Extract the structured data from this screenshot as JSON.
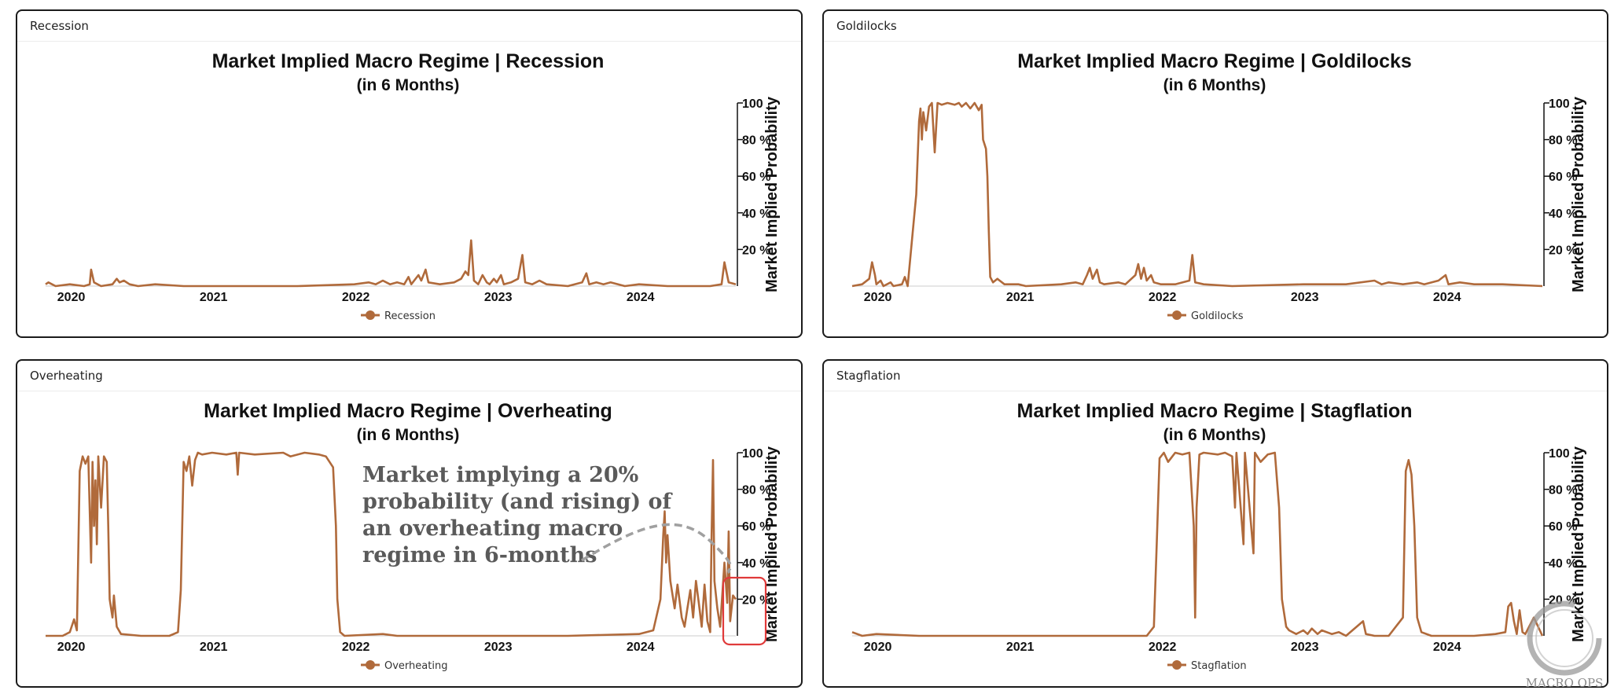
{
  "panels": [
    {
      "id": "recession",
      "header": "Recession"
    },
    {
      "id": "goldilocks",
      "header": "Goldilocks"
    },
    {
      "id": "overheating",
      "header": "Overheating"
    },
    {
      "id": "stagflation",
      "header": "Stagflation"
    }
  ],
  "colors": {
    "line": "#b06a3b",
    "axis": "#111111",
    "annotation_box": "#e03a3a",
    "annotation_arrow": "#a0a0a0",
    "watermark": "#9a9a9a"
  },
  "chart_data": [
    {
      "type": "line",
      "title": "Market Implied Macro Regime | Recession",
      "subtitle": "(in 6 Months)",
      "ylabel": "Market Implied Probability",
      "ylim": [
        0,
        100
      ],
      "yticks": [
        "20 %",
        "40 %",
        "60 %",
        "80 %",
        "100"
      ],
      "xticks": [
        "2020",
        "2021",
        "2022",
        "2023",
        "2024"
      ],
      "xlim": [
        2019.83,
        2024.68
      ],
      "legend": "Recession",
      "points": [
        [
          2019.83,
          1
        ],
        [
          2019.85,
          2
        ],
        [
          2019.9,
          0
        ],
        [
          2020.0,
          1
        ],
        [
          2020.1,
          0
        ],
        [
          2020.14,
          1
        ],
        [
          2020.15,
          9
        ],
        [
          2020.17,
          2
        ],
        [
          2020.22,
          0
        ],
        [
          2020.3,
          1
        ],
        [
          2020.33,
          4
        ],
        [
          2020.35,
          2
        ],
        [
          2020.38,
          3
        ],
        [
          2020.42,
          1
        ],
        [
          2020.48,
          0
        ],
        [
          2020.6,
          1
        ],
        [
          2020.8,
          0
        ],
        [
          2021.2,
          0
        ],
        [
          2021.6,
          0
        ],
        [
          2022.0,
          1
        ],
        [
          2022.1,
          2
        ],
        [
          2022.15,
          1
        ],
        [
          2022.2,
          3
        ],
        [
          2022.25,
          1
        ],
        [
          2022.3,
          2
        ],
        [
          2022.35,
          1
        ],
        [
          2022.38,
          5
        ],
        [
          2022.4,
          1
        ],
        [
          2022.45,
          6
        ],
        [
          2022.47,
          3
        ],
        [
          2022.5,
          9
        ],
        [
          2022.52,
          2
        ],
        [
          2022.6,
          1
        ],
        [
          2022.7,
          2
        ],
        [
          2022.75,
          4
        ],
        [
          2022.78,
          8
        ],
        [
          2022.8,
          6
        ],
        [
          2022.82,
          25
        ],
        [
          2022.84,
          3
        ],
        [
          2022.87,
          1
        ],
        [
          2022.9,
          6
        ],
        [
          2022.93,
          2
        ],
        [
          2022.95,
          1
        ],
        [
          2022.98,
          4
        ],
        [
          2023.0,
          2
        ],
        [
          2023.03,
          6
        ],
        [
          2023.05,
          1
        ],
        [
          2023.1,
          2
        ],
        [
          2023.15,
          4
        ],
        [
          2023.18,
          17
        ],
        [
          2023.2,
          2
        ],
        [
          2023.25,
          1
        ],
        [
          2023.3,
          3
        ],
        [
          2023.35,
          1
        ],
        [
          2023.5,
          0
        ],
        [
          2023.6,
          2
        ],
        [
          2023.63,
          7
        ],
        [
          2023.65,
          1
        ],
        [
          2023.7,
          2
        ],
        [
          2023.75,
          1
        ],
        [
          2023.8,
          2
        ],
        [
          2023.9,
          0
        ],
        [
          2024.0,
          1
        ],
        [
          2024.2,
          0
        ],
        [
          2024.5,
          0
        ],
        [
          2024.58,
          1
        ],
        [
          2024.6,
          13
        ],
        [
          2024.63,
          2
        ],
        [
          2024.68,
          1
        ]
      ]
    },
    {
      "type": "line",
      "title": "Market Implied Macro Regime | Goldilocks",
      "subtitle": "(in 6 Months)",
      "ylabel": "Market Implied Probability",
      "ylim": [
        0,
        100
      ],
      "yticks": [
        "20 %",
        "40 %",
        "60 %",
        "80 %",
        "100"
      ],
      "xticks": [
        "2020",
        "2021",
        "2022",
        "2023",
        "2024"
      ],
      "xlim": [
        2019.83,
        2024.68
      ],
      "legend": "Goldilocks",
      "points": [
        [
          2019.83,
          0
        ],
        [
          2019.9,
          1
        ],
        [
          2019.95,
          4
        ],
        [
          2019.97,
          13
        ],
        [
          2019.99,
          6
        ],
        [
          2020.0,
          1
        ],
        [
          2020.03,
          3
        ],
        [
          2020.05,
          0
        ],
        [
          2020.1,
          2
        ],
        [
          2020.12,
          0
        ],
        [
          2020.18,
          1
        ],
        [
          2020.2,
          5
        ],
        [
          2020.22,
          0
        ],
        [
          2020.28,
          50
        ],
        [
          2020.3,
          90
        ],
        [
          2020.31,
          97
        ],
        [
          2020.32,
          80
        ],
        [
          2020.33,
          95
        ],
        [
          2020.35,
          85
        ],
        [
          2020.37,
          98
        ],
        [
          2020.39,
          100
        ],
        [
          2020.41,
          73
        ],
        [
          2020.43,
          100
        ],
        [
          2020.46,
          99
        ],
        [
          2020.5,
          100
        ],
        [
          2020.55,
          99
        ],
        [
          2020.58,
          100
        ],
        [
          2020.6,
          98
        ],
        [
          2020.63,
          100
        ],
        [
          2020.66,
          97
        ],
        [
          2020.69,
          100
        ],
        [
          2020.72,
          96
        ],
        [
          2020.74,
          99
        ],
        [
          2020.75,
          80
        ],
        [
          2020.77,
          75
        ],
        [
          2020.78,
          60
        ],
        [
          2020.79,
          30
        ],
        [
          2020.8,
          5
        ],
        [
          2020.82,
          2
        ],
        [
          2020.85,
          4
        ],
        [
          2020.9,
          1
        ],
        [
          2021.0,
          1
        ],
        [
          2021.05,
          0
        ],
        [
          2021.3,
          1
        ],
        [
          2021.4,
          2
        ],
        [
          2021.45,
          1
        ],
        [
          2021.48,
          6
        ],
        [
          2021.5,
          10
        ],
        [
          2021.52,
          4
        ],
        [
          2021.55,
          9
        ],
        [
          2021.57,
          2
        ],
        [
          2021.6,
          1
        ],
        [
          2021.7,
          2
        ],
        [
          2021.75,
          1
        ],
        [
          2021.82,
          6
        ],
        [
          2021.84,
          12
        ],
        [
          2021.86,
          4
        ],
        [
          2021.88,
          10
        ],
        [
          2021.9,
          3
        ],
        [
          2021.93,
          6
        ],
        [
          2021.95,
          2
        ],
        [
          2022.0,
          1
        ],
        [
          2022.1,
          1
        ],
        [
          2022.2,
          3
        ],
        [
          2022.22,
          17
        ],
        [
          2022.24,
          2
        ],
        [
          2022.3,
          1
        ],
        [
          2022.5,
          0
        ],
        [
          2023.0,
          1
        ],
        [
          2023.3,
          1
        ],
        [
          2023.5,
          3
        ],
        [
          2023.55,
          1
        ],
        [
          2023.6,
          2
        ],
        [
          2023.7,
          1
        ],
        [
          2023.8,
          2
        ],
        [
          2023.85,
          1
        ],
        [
          2023.95,
          3
        ],
        [
          2024.0,
          6
        ],
        [
          2024.02,
          1
        ],
        [
          2024.1,
          2
        ],
        [
          2024.2,
          1
        ],
        [
          2024.4,
          1
        ],
        [
          2024.68,
          0
        ]
      ]
    },
    {
      "type": "line",
      "title": "Market Implied Macro Regime | Overheating",
      "subtitle": "(in 6 Months)",
      "ylabel": "Market Implied Probability",
      "ylim": [
        0,
        100
      ],
      "yticks": [
        "20 %",
        "40 %",
        "60 %",
        "80 %",
        "100"
      ],
      "xticks": [
        "2020",
        "2021",
        "2022",
        "2023",
        "2024"
      ],
      "xlim": [
        2019.83,
        2024.68
      ],
      "legend": "Overheating",
      "annotation": "Market implying a 20% probability (and rising) of an overheating macro regime in 6-months",
      "annotation_lines": [
        "Market implying a 20%",
        "probability (and rising) of",
        "an overheating macro",
        "regime in 6-months"
      ],
      "points": [
        [
          2019.83,
          0
        ],
        [
          2019.95,
          0
        ],
        [
          2020.0,
          2
        ],
        [
          2020.03,
          9
        ],
        [
          2020.05,
          3
        ],
        [
          2020.07,
          90
        ],
        [
          2020.09,
          98
        ],
        [
          2020.11,
          94
        ],
        [
          2020.13,
          98
        ],
        [
          2020.15,
          40
        ],
        [
          2020.16,
          95
        ],
        [
          2020.17,
          60
        ],
        [
          2020.18,
          85
        ],
        [
          2020.19,
          50
        ],
        [
          2020.2,
          98
        ],
        [
          2020.22,
          70
        ],
        [
          2020.24,
          98
        ],
        [
          2020.26,
          95
        ],
        [
          2020.27,
          60
        ],
        [
          2020.28,
          20
        ],
        [
          2020.3,
          10
        ],
        [
          2020.31,
          22
        ],
        [
          2020.33,
          5
        ],
        [
          2020.36,
          1
        ],
        [
          2020.5,
          0
        ],
        [
          2020.7,
          0
        ],
        [
          2020.76,
          2
        ],
        [
          2020.78,
          25
        ],
        [
          2020.8,
          95
        ],
        [
          2020.82,
          90
        ],
        [
          2020.84,
          98
        ],
        [
          2020.86,
          82
        ],
        [
          2020.88,
          96
        ],
        [
          2020.9,
          100
        ],
        [
          2020.93,
          99
        ],
        [
          2021.0,
          100
        ],
        [
          2021.1,
          99
        ],
        [
          2021.17,
          100
        ],
        [
          2021.18,
          88
        ],
        [
          2021.19,
          100
        ],
        [
          2021.3,
          99
        ],
        [
          2021.5,
          100
        ],
        [
          2021.55,
          98
        ],
        [
          2021.65,
          100
        ],
        [
          2021.75,
          99
        ],
        [
          2021.8,
          98
        ],
        [
          2021.85,
          92
        ],
        [
          2021.87,
          60
        ],
        [
          2021.88,
          20
        ],
        [
          2021.9,
          2
        ],
        [
          2021.93,
          0
        ],
        [
          2022.2,
          1
        ],
        [
          2022.3,
          0
        ],
        [
          2023.0,
          0
        ],
        [
          2023.5,
          0
        ],
        [
          2024.0,
          1
        ],
        [
          2024.1,
          3
        ],
        [
          2024.15,
          20
        ],
        [
          2024.17,
          55
        ],
        [
          2024.18,
          68
        ],
        [
          2024.19,
          40
        ],
        [
          2024.2,
          55
        ],
        [
          2024.22,
          30
        ],
        [
          2024.25,
          15
        ],
        [
          2024.27,
          28
        ],
        [
          2024.3,
          10
        ],
        [
          2024.32,
          5
        ],
        [
          2024.34,
          15
        ],
        [
          2024.36,
          25
        ],
        [
          2024.38,
          10
        ],
        [
          2024.4,
          30
        ],
        [
          2024.42,
          18
        ],
        [
          2024.44,
          5
        ],
        [
          2024.46,
          28
        ],
        [
          2024.48,
          8
        ],
        [
          2024.5,
          2
        ],
        [
          2024.51,
          55
        ],
        [
          2024.52,
          96
        ],
        [
          2024.53,
          30
        ],
        [
          2024.55,
          15
        ],
        [
          2024.57,
          5
        ],
        [
          2024.6,
          40
        ],
        [
          2024.62,
          18
        ],
        [
          2024.63,
          57
        ],
        [
          2024.64,
          8
        ],
        [
          2024.66,
          22
        ],
        [
          2024.68,
          20
        ]
      ]
    },
    {
      "type": "line",
      "title": "Market Implied Macro Regime | Stagflation",
      "subtitle": "(in 6 Months)",
      "ylabel": "Market Implied Probability",
      "ylim": [
        0,
        100
      ],
      "yticks": [
        "20 %",
        "40 %",
        "60 %",
        "80 %",
        "100"
      ],
      "xticks": [
        "2020",
        "2021",
        "2022",
        "2023",
        "2024"
      ],
      "xlim": [
        2019.83,
        2024.68
      ],
      "legend": "Stagflation",
      "points": [
        [
          2019.83,
          2
        ],
        [
          2019.9,
          0
        ],
        [
          2020.0,
          1
        ],
        [
          2020.3,
          0
        ],
        [
          2021.0,
          0
        ],
        [
          2021.9,
          0
        ],
        [
          2021.95,
          5
        ],
        [
          2021.97,
          50
        ],
        [
          2021.99,
          97
        ],
        [
          2022.02,
          100
        ],
        [
          2022.05,
          95
        ],
        [
          2022.08,
          98
        ],
        [
          2022.1,
          100
        ],
        [
          2022.15,
          99
        ],
        [
          2022.2,
          100
        ],
        [
          2022.23,
          60
        ],
        [
          2022.24,
          10
        ],
        [
          2022.25,
          70
        ],
        [
          2022.27,
          99
        ],
        [
          2022.3,
          100
        ],
        [
          2022.4,
          99
        ],
        [
          2022.45,
          100
        ],
        [
          2022.5,
          98
        ],
        [
          2022.52,
          70
        ],
        [
          2022.53,
          100
        ],
        [
          2022.58,
          50
        ],
        [
          2022.59,
          100
        ],
        [
          2022.65,
          45
        ],
        [
          2022.66,
          100
        ],
        [
          2022.7,
          95
        ],
        [
          2022.75,
          99
        ],
        [
          2022.8,
          100
        ],
        [
          2022.83,
          70
        ],
        [
          2022.85,
          20
        ],
        [
          2022.88,
          5
        ],
        [
          2022.9,
          3
        ],
        [
          2022.95,
          1
        ],
        [
          2023.0,
          3
        ],
        [
          2023.03,
          1
        ],
        [
          2023.06,
          4
        ],
        [
          2023.1,
          1
        ],
        [
          2023.13,
          3
        ],
        [
          2023.2,
          1
        ],
        [
          2023.25,
          2
        ],
        [
          2023.3,
          0
        ],
        [
          2023.42,
          8
        ],
        [
          2023.44,
          1
        ],
        [
          2023.5,
          0
        ],
        [
          2023.6,
          0
        ],
        [
          2023.7,
          10
        ],
        [
          2023.72,
          90
        ],
        [
          2023.74,
          96
        ],
        [
          2023.76,
          88
        ],
        [
          2023.78,
          60
        ],
        [
          2023.8,
          10
        ],
        [
          2023.83,
          2
        ],
        [
          2023.9,
          0
        ],
        [
          2024.2,
          0
        ],
        [
          2024.35,
          1
        ],
        [
          2024.42,
          2
        ],
        [
          2024.44,
          16
        ],
        [
          2024.46,
          18
        ],
        [
          2024.48,
          8
        ],
        [
          2024.5,
          1
        ],
        [
          2024.52,
          14
        ],
        [
          2024.54,
          2
        ],
        [
          2024.56,
          1
        ],
        [
          2024.62,
          10
        ],
        [
          2024.68,
          0
        ]
      ]
    }
  ],
  "watermark": "MACRO OPS"
}
